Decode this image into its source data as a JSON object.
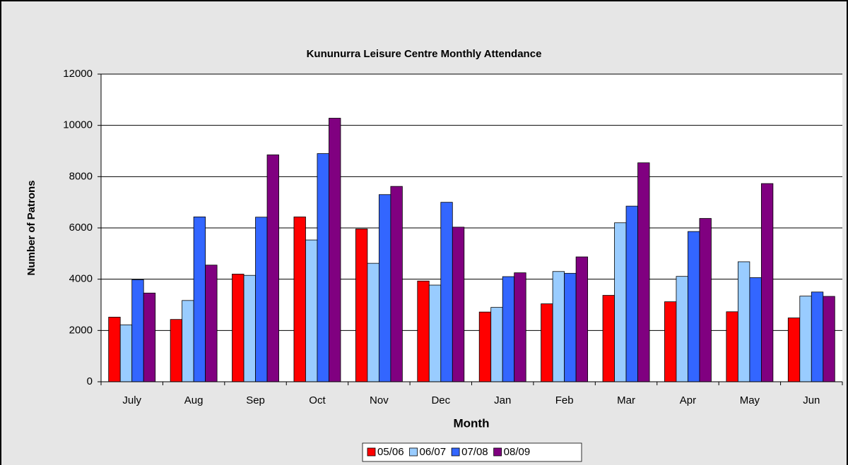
{
  "chart_data": {
    "type": "bar",
    "title": "Kununurra Leisure Centre Monthly Attendance",
    "x_label": "Month",
    "y_label": "Number of Patrons",
    "categories": [
      "July",
      "Aug",
      "Sep",
      "Oct",
      "Nov",
      "Dec",
      "Jan",
      "Feb",
      "Mar",
      "Apr",
      "May",
      "Jun"
    ],
    "series": [
      {
        "name": "05/06",
        "color": "#ff0000",
        "values": [
          2520,
          2430,
          4200,
          6430,
          5960,
          3930,
          2720,
          3040,
          3370,
          3120,
          2730,
          2490
        ]
      },
      {
        "name": "06/07",
        "color": "#99ccff",
        "values": [
          2220,
          3170,
          4150,
          5530,
          4620,
          3770,
          2900,
          4300,
          6200,
          4110,
          4680,
          3340
        ]
      },
      {
        "name": "07/08",
        "color": "#3366ff",
        "values": [
          3980,
          6430,
          6420,
          8900,
          7300,
          7000,
          4100,
          4230,
          6850,
          5860,
          4060,
          3500
        ]
      },
      {
        "name": "08/09",
        "color": "#800080",
        "values": [
          3460,
          4550,
          8850,
          10280,
          7620,
          6030,
          4250,
          4870,
          8540,
          6370,
          7730,
          3330
        ]
      }
    ],
    "ylim": [
      0,
      12000
    ],
    "yticks": [
      0,
      2000,
      4000,
      6000,
      8000,
      10000,
      12000
    ],
    "grid": true,
    "legend": "bottom"
  }
}
